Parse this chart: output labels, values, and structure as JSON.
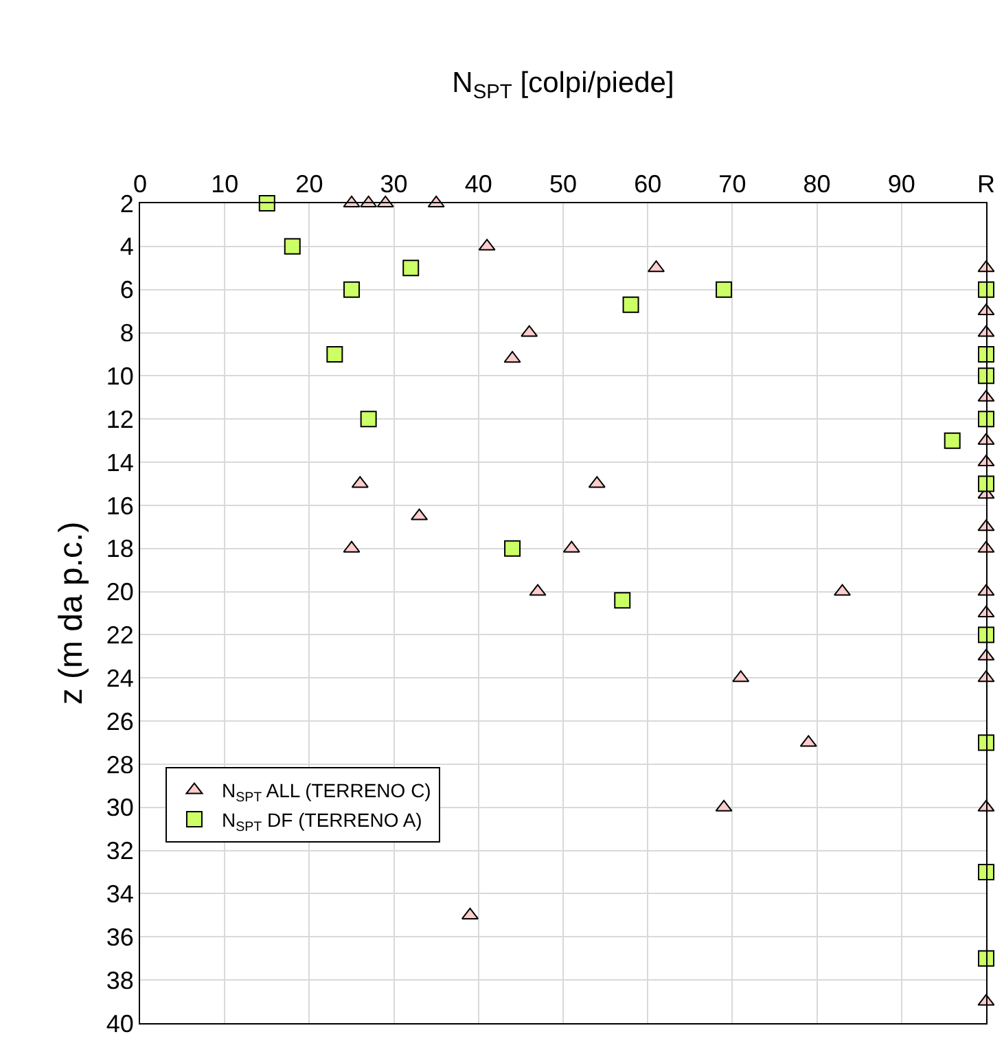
{
  "chart_data": {
    "type": "scatter",
    "xlabel": "N$_{SPT}$ [colpi/piede]",
    "ylabel": "z (m da p.c.)",
    "xlim": [
      0,
      100
    ],
    "xticks": [
      0,
      10,
      20,
      30,
      40,
      50,
      60,
      70,
      80,
      90,
      {
        "value": 100,
        "label": "R"
      }
    ],
    "ylim": [
      40,
      2
    ],
    "yticks": [
      2,
      4,
      6,
      8,
      10,
      12,
      14,
      16,
      18,
      20,
      22,
      24,
      26,
      28,
      30,
      32,
      34,
      36,
      38,
      40
    ],
    "grid": true,
    "legend": "bottom left",
    "series": [
      {
        "name": "N$_{SPT}$ ALL (TERRENO C)",
        "color": "#ffcccc",
        "marker": "triangle",
        "x": [
          25,
          27,
          29,
          35,
          41,
          61,
          100,
          100,
          46,
          100,
          44,
          100,
          100,
          100,
          26,
          54,
          100,
          33,
          100,
          25,
          51,
          100,
          47,
          83,
          100,
          100,
          100,
          71,
          100,
          79,
          69,
          100,
          39,
          100
        ],
        "values": [
          2,
          2,
          2,
          2,
          4,
          5,
          5,
          7,
          8,
          8,
          9.2,
          11,
          13,
          14,
          15,
          15,
          15.5,
          16.5,
          17,
          18,
          18,
          18,
          20,
          20,
          20,
          21,
          23,
          24,
          24,
          27,
          30,
          30,
          35,
          39
        ]
      },
      {
        "name": "N$_{SPT}$ DF (TERRENO A)",
        "color": "#ccff66",
        "marker": "square",
        "x": [
          15,
          18,
          32,
          25,
          69,
          100,
          58,
          23,
          100,
          100,
          27,
          100,
          96,
          100,
          44,
          57,
          100,
          100,
          100,
          100
        ],
        "values": [
          2,
          4,
          5,
          6,
          6,
          6,
          6.7,
          9,
          9,
          10,
          12,
          12,
          13,
          15,
          18,
          20.4,
          22,
          27,
          33,
          37
        ]
      }
    ]
  }
}
